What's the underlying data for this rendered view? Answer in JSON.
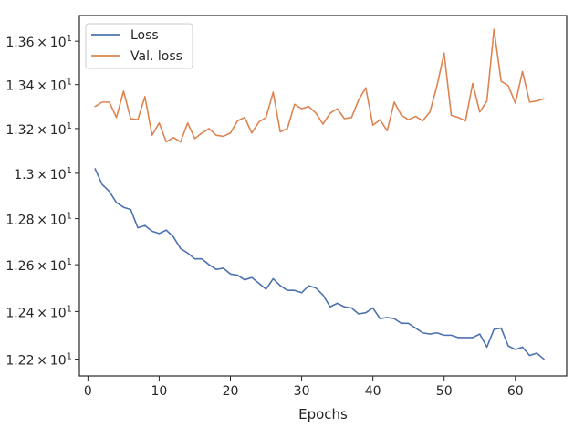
{
  "chart_data": {
    "type": "line",
    "xlabel": "Epochs",
    "ylabel": "",
    "yscale": "log",
    "xlim": [
      -1.2,
      67.2
    ],
    "ylim": [
      12.13,
      13.72
    ],
    "grid": false,
    "legend_position": "top-left",
    "xticks": [
      {
        "value": 0,
        "label": "0"
      },
      {
        "value": 10,
        "label": "10"
      },
      {
        "value": 20,
        "label": "20"
      },
      {
        "value": 30,
        "label": "30"
      },
      {
        "value": 40,
        "label": "40"
      },
      {
        "value": 50,
        "label": "50"
      },
      {
        "value": 60,
        "label": "60"
      }
    ],
    "yticks": [
      {
        "value": 12.2,
        "label": "1.22 × 10^1",
        "mantissa": "1.22",
        "base": "10",
        "exp": "1"
      },
      {
        "value": 12.4,
        "label": "1.24 × 10^1",
        "mantissa": "1.24",
        "base": "10",
        "exp": "1"
      },
      {
        "value": 12.6,
        "label": "1.26 × 10^1",
        "mantissa": "1.26",
        "base": "10",
        "exp": "1"
      },
      {
        "value": 12.8,
        "label": "1.28 × 10^1",
        "mantissa": "1.28",
        "base": "10",
        "exp": "1"
      },
      {
        "value": 13.0,
        "label": "1.3 × 10^1",
        "mantissa": "1.3",
        "base": "10",
        "exp": "1"
      },
      {
        "value": 13.2,
        "label": "1.32 × 10^1",
        "mantissa": "1.32",
        "base": "10",
        "exp": "1"
      },
      {
        "value": 13.4,
        "label": "1.34 × 10^1",
        "mantissa": "1.34",
        "base": "10",
        "exp": "1"
      },
      {
        "value": 13.6,
        "label": "1.36 × 10^1",
        "mantissa": "1.36",
        "base": "10",
        "exp": "1"
      }
    ],
    "series": [
      {
        "name": "Loss",
        "color": "#4c72b0",
        "x": [
          1,
          2,
          3,
          4,
          5,
          6,
          7,
          8,
          9,
          10,
          11,
          12,
          13,
          14,
          15,
          16,
          17,
          18,
          19,
          20,
          21,
          22,
          23,
          24,
          25,
          26,
          27,
          28,
          29,
          30,
          31,
          32,
          33,
          34,
          35,
          36,
          37,
          38,
          39,
          40,
          41,
          42,
          43,
          44,
          45,
          46,
          47,
          48,
          49,
          50,
          51,
          52,
          53,
          54,
          55,
          56,
          57,
          58,
          59,
          60,
          61,
          62,
          63,
          64
        ],
        "values": [
          13.02,
          12.95,
          12.92,
          12.87,
          12.85,
          12.84,
          12.76,
          12.77,
          12.745,
          12.735,
          12.75,
          12.72,
          12.67,
          12.65,
          12.625,
          12.625,
          12.6,
          12.58,
          12.585,
          12.56,
          12.555,
          12.535,
          12.545,
          12.52,
          12.495,
          12.54,
          12.51,
          12.49,
          12.49,
          12.48,
          12.51,
          12.5,
          12.47,
          12.42,
          12.435,
          12.42,
          12.415,
          12.39,
          12.395,
          12.415,
          12.37,
          12.375,
          12.37,
          12.35,
          12.35,
          12.33,
          12.31,
          12.305,
          12.31,
          12.3,
          12.3,
          12.29,
          12.29,
          12.29,
          12.305,
          12.25,
          12.325,
          12.33,
          12.255,
          12.24,
          12.25,
          12.215,
          12.225,
          12.2
        ]
      },
      {
        "name": "Val. loss",
        "color": "#dd8452",
        "x": [
          1,
          2,
          3,
          4,
          5,
          6,
          7,
          8,
          9,
          10,
          11,
          12,
          13,
          14,
          15,
          16,
          17,
          18,
          19,
          20,
          21,
          22,
          23,
          24,
          25,
          26,
          27,
          28,
          29,
          30,
          31,
          32,
          33,
          34,
          35,
          36,
          37,
          38,
          39,
          40,
          41,
          42,
          43,
          44,
          45,
          46,
          47,
          48,
          49,
          50,
          51,
          52,
          53,
          54,
          55,
          56,
          57,
          58,
          59,
          60,
          61,
          62,
          63,
          64
        ],
        "values": [
          13.3,
          13.32,
          13.32,
          13.25,
          13.37,
          13.245,
          13.24,
          13.345,
          13.17,
          13.225,
          13.14,
          13.16,
          13.14,
          13.225,
          13.155,
          13.18,
          13.2,
          13.17,
          13.165,
          13.18,
          13.235,
          13.25,
          13.18,
          13.23,
          13.25,
          13.365,
          13.185,
          13.2,
          13.31,
          13.29,
          13.3,
          13.27,
          13.22,
          13.27,
          13.29,
          13.245,
          13.25,
          13.33,
          13.385,
          13.215,
          13.24,
          13.19,
          13.32,
          13.26,
          13.24,
          13.255,
          13.235,
          13.275,
          13.395,
          13.545,
          13.26,
          13.25,
          13.235,
          13.405,
          13.275,
          13.325,
          13.655,
          13.415,
          13.395,
          13.315,
          13.46,
          13.32,
          13.325,
          13.335
        ]
      }
    ]
  }
}
